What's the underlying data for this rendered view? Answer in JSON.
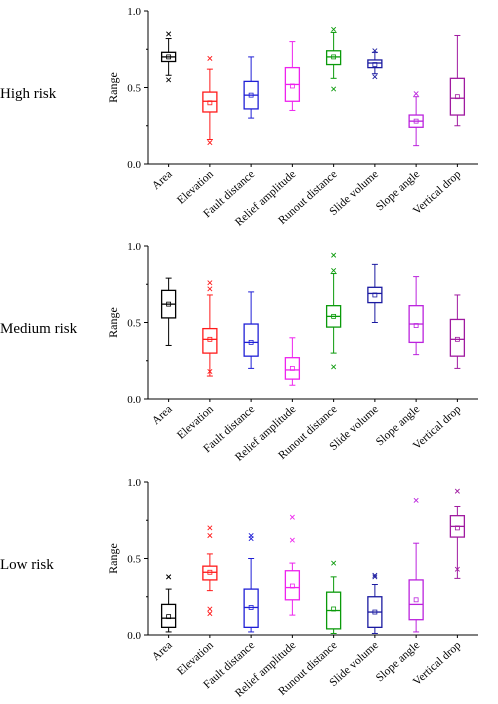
{
  "chart_data": [
    {
      "type": "box",
      "panel_label": "High risk",
      "ylabel": "Range",
      "ylim": [
        0,
        1
      ],
      "yticks": [
        "0.0",
        "0.5",
        "1.0"
      ],
      "categories": [
        "Area",
        "Elevation",
        "Fault distance",
        "Relief amplitude",
        "Runout distance",
        "Slide volume",
        "Slope angle",
        "Vertical drop"
      ],
      "colors": [
        "#000000",
        "#ff1a1a",
        "#1f1fd6",
        "#ee22ee",
        "#0a9a0a",
        "#1a1aa0",
        "#bb22dd",
        "#a01aa0"
      ],
      "boxes": [
        {
          "min": 0.58,
          "q1": 0.67,
          "median": 0.7,
          "q3": 0.73,
          "max": 0.82,
          "mean": 0.7,
          "outliers": [
            0.85,
            0.55
          ]
        },
        {
          "min": 0.16,
          "q1": 0.34,
          "median": 0.41,
          "q3": 0.47,
          "max": 0.62,
          "mean": 0.4,
          "outliers": [
            0.69,
            0.14
          ]
        },
        {
          "min": 0.3,
          "q1": 0.36,
          "median": 0.45,
          "q3": 0.54,
          "max": 0.7,
          "mean": 0.45,
          "outliers": []
        },
        {
          "min": 0.35,
          "q1": 0.41,
          "median": 0.52,
          "q3": 0.63,
          "max": 0.8,
          "mean": 0.51,
          "outliers": []
        },
        {
          "min": 0.56,
          "q1": 0.65,
          "median": 0.7,
          "q3": 0.74,
          "max": 0.86,
          "mean": 0.7,
          "outliers": [
            0.49,
            0.88
          ]
        },
        {
          "min": 0.59,
          "q1": 0.63,
          "median": 0.66,
          "q3": 0.68,
          "max": 0.73,
          "mean": 0.65,
          "outliers": [
            0.57,
            0.74
          ]
        },
        {
          "min": 0.12,
          "q1": 0.24,
          "median": 0.28,
          "q3": 0.32,
          "max": 0.44,
          "mean": 0.28,
          "outliers": [
            0.46
          ]
        },
        {
          "min": 0.25,
          "q1": 0.32,
          "median": 0.43,
          "q3": 0.56,
          "max": 0.84,
          "mean": 0.44,
          "outliers": []
        }
      ]
    },
    {
      "type": "box",
      "panel_label": "Medium risk",
      "ylabel": "Range",
      "ylim": [
        0,
        1
      ],
      "yticks": [
        "0.0",
        "0.5",
        "1.0"
      ],
      "categories": [
        "Area",
        "Elevation",
        "Fault distance",
        "Relief amplitude",
        "Runout distance",
        "Slide volume",
        "Slope angle",
        "Vertical drop"
      ],
      "colors": [
        "#000000",
        "#ff1a1a",
        "#1f1fd6",
        "#ee22ee",
        "#0a9a0a",
        "#1a1aa0",
        "#bb22dd",
        "#a01aa0"
      ],
      "boxes": [
        {
          "min": 0.35,
          "q1": 0.53,
          "median": 0.62,
          "q3": 0.71,
          "max": 0.79,
          "mean": 0.62,
          "outliers": []
        },
        {
          "min": 0.15,
          "q1": 0.3,
          "median": 0.39,
          "q3": 0.46,
          "max": 0.68,
          "mean": 0.39,
          "outliers": [
            0.76,
            0.72,
            0.18
          ]
        },
        {
          "min": 0.2,
          "q1": 0.28,
          "median": 0.37,
          "q3": 0.49,
          "max": 0.7,
          "mean": 0.37,
          "outliers": []
        },
        {
          "min": 0.09,
          "q1": 0.13,
          "median": 0.19,
          "q3": 0.27,
          "max": 0.4,
          "mean": 0.2,
          "outliers": []
        },
        {
          "min": 0.3,
          "q1": 0.47,
          "median": 0.54,
          "q3": 0.61,
          "max": 0.82,
          "mean": 0.54,
          "outliers": [
            0.94,
            0.84,
            0.21
          ]
        },
        {
          "min": 0.5,
          "q1": 0.63,
          "median": 0.69,
          "q3": 0.73,
          "max": 0.88,
          "mean": 0.68,
          "outliers": []
        },
        {
          "min": 0.29,
          "q1": 0.37,
          "median": 0.49,
          "q3": 0.61,
          "max": 0.8,
          "mean": 0.48,
          "outliers": []
        },
        {
          "min": 0.2,
          "q1": 0.28,
          "median": 0.39,
          "q3": 0.52,
          "max": 0.68,
          "mean": 0.39,
          "outliers": []
        }
      ]
    },
    {
      "type": "box",
      "panel_label": "Low risk",
      "ylabel": "Range",
      "ylim": [
        0,
        1
      ],
      "yticks": [
        "0.0",
        "0.5",
        "1.0"
      ],
      "categories": [
        "Area",
        "Elevation",
        "Fault distance",
        "Relief amplitude",
        "Runout distance",
        "Slide volume",
        "Slope angle",
        "Vertical drop"
      ],
      "colors": [
        "#000000",
        "#ff1a1a",
        "#1f1fd6",
        "#ee22ee",
        "#0a9a0a",
        "#1a1aa0",
        "#bb22dd",
        "#a01aa0"
      ],
      "boxes": [
        {
          "min": 0.02,
          "q1": 0.05,
          "median": 0.11,
          "q3": 0.2,
          "max": 0.3,
          "mean": 0.12,
          "outliers": [
            0.38,
            0.38
          ]
        },
        {
          "min": 0.29,
          "q1": 0.36,
          "median": 0.41,
          "q3": 0.45,
          "max": 0.53,
          "mean": 0.41,
          "outliers": [
            0.65,
            0.7,
            0.17,
            0.14
          ]
        },
        {
          "min": 0.02,
          "q1": 0.05,
          "median": 0.18,
          "q3": 0.3,
          "max": 0.5,
          "mean": 0.18,
          "outliers": [
            0.65,
            0.63
          ]
        },
        {
          "min": 0.13,
          "q1": 0.23,
          "median": 0.31,
          "q3": 0.42,
          "max": 0.47,
          "mean": 0.32,
          "outliers": [
            0.62,
            0.77
          ]
        },
        {
          "min": 0.01,
          "q1": 0.04,
          "median": 0.16,
          "q3": 0.28,
          "max": 0.38,
          "mean": 0.17,
          "outliers": [
            0.47
          ]
        },
        {
          "min": 0.01,
          "q1": 0.05,
          "median": 0.15,
          "q3": 0.25,
          "max": 0.33,
          "mean": 0.15,
          "outliers": [
            0.39,
            0.38
          ]
        },
        {
          "min": 0.02,
          "q1": 0.1,
          "median": 0.2,
          "q3": 0.36,
          "max": 0.6,
          "mean": 0.23,
          "outliers": [
            0.88
          ]
        },
        {
          "min": 0.37,
          "q1": 0.64,
          "median": 0.71,
          "q3": 0.78,
          "max": 0.84,
          "mean": 0.7,
          "outliers": [
            0.94,
            0.43
          ]
        }
      ]
    }
  ]
}
